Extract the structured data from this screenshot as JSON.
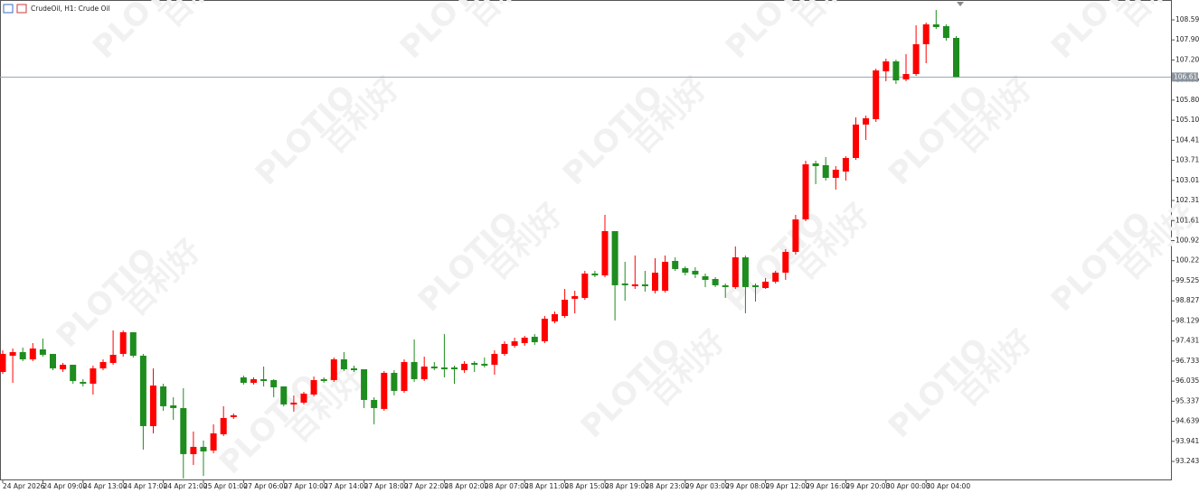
{
  "chart_data": {
    "type": "candlestick",
    "title": "CrudeOil, H1:  Crude Oil",
    "watermark": [
      "百利好",
      "PLOTIO"
    ],
    "categories": [
      "24 Apr 2026",
      null,
      null,
      null,
      "24 Apr 09:00",
      null,
      null,
      null,
      "24 Apr 13:00",
      null,
      null,
      null,
      "24 Apr 17:00",
      null,
      null,
      null,
      "24 Apr 21:00",
      null,
      null,
      null,
      "25 Apr 01:00",
      null,
      null,
      null,
      "27 Apr 06:00",
      null,
      null,
      null,
      "27 Apr 10:00",
      null,
      null,
      null,
      "27 Apr 14:00",
      null,
      null,
      null,
      "27 Apr 18:00",
      null,
      null,
      null,
      "27 Apr 22:00",
      null,
      null,
      null,
      "28 Apr 02:00",
      null,
      null,
      null,
      "28 Apr 07:00",
      null,
      null,
      null,
      "28 Apr 11:00",
      null,
      null,
      null,
      "28 Apr 15:00",
      null,
      null,
      null,
      "28 Apr 19:00",
      null,
      null,
      null,
      "28 Apr 23:00",
      null,
      null,
      null,
      "29 Apr 03:00",
      null,
      null,
      null,
      "29 Apr 08:00",
      null,
      null,
      null,
      "29 Apr 12:00",
      null,
      null,
      null,
      "29 Apr 16:00",
      null,
      null,
      null,
      "29 Apr 20:00",
      null,
      null,
      null,
      "30 Apr 00:00",
      null,
      null,
      null,
      "30 Apr 04:00",
      null,
      null,
      null
    ],
    "open": [
      96.353,
      96.918,
      97.044,
      96.793,
      97.138,
      96.981,
      96.447,
      96.604,
      96.008,
      95.945,
      96.479,
      96.667,
      96.981,
      97.735,
      96.918,
      94.469,
      95.851,
      95.191,
      95.097,
      93.496,
      93.747,
      93.621,
      94.187,
      94.783,
      96.165,
      95.976,
      96.102,
      96.071,
      95.851,
      95.223,
      95.286,
      95.568,
      96.102,
      96.071,
      96.793,
      96.479,
      96.447,
      95.38,
      95.066,
      96.322,
      95.694,
      96.699,
      96.102,
      96.542,
      96.51,
      96.51,
      96.416,
      96.667,
      96.636,
      96.604,
      96.981,
      97.264,
      97.358,
      97.578,
      97.421,
      98.112,
      98.3,
      98.897,
      98.928,
      99.776,
      99.713,
      101.252,
      99.43,
      99.336,
      99.399,
      99.179,
      99.179,
      100.215,
      99.964,
      99.87,
      99.682,
      99.587,
      99.368,
      99.305,
      100.341,
      99.368,
      99.273,
      99.493,
      99.807,
      100.529,
      101.66,
      103.607,
      103.544,
      103.104,
      103.324,
      103.795,
      104.957,
      105.145,
      106.809,
      107.155,
      106.527,
      106.715,
      107.751,
      108.442,
      108.379,
      107.971
    ],
    "high": [
      97.107,
      97.17,
      97.201,
      97.358,
      97.515,
      96.981,
      96.667,
      96.604,
      96.102,
      96.573,
      96.793,
      97.798,
      97.798,
      97.735,
      96.981,
      96.479,
      95.945,
      95.474,
      95.788,
      94.281,
      93.967,
      94.532,
      95.16,
      94.909,
      96.228,
      96.165,
      96.542,
      96.102,
      95.851,
      95.537,
      95.662,
      96.196,
      96.165,
      96.856,
      97.044,
      96.573,
      96.447,
      95.474,
      96.385,
      96.416,
      96.793,
      97.484,
      96.887,
      96.699,
      97.672,
      96.573,
      96.73,
      96.73,
      96.856,
      97.107,
      97.421,
      97.546,
      97.609,
      97.672,
      98.3,
      98.457,
      99.242,
      99.179,
      99.87,
      99.87,
      101.817,
      101.252,
      100.184,
      100.404,
      99.87,
      100.31,
      100.404,
      100.341,
      100.027,
      99.996,
      99.776,
      99.65,
      99.43,
      100.718,
      100.404,
      99.43,
      99.619,
      99.87,
      100.624,
      101.817,
      103.701,
      103.701,
      103.826,
      103.512,
      103.858,
      105.208,
      105.271,
      106.904,
      107.249,
      107.218,
      107.406,
      108.411,
      108.505,
      108.945,
      108.442,
      108.034
    ],
    "low": [
      96.29,
      95.976,
      96.73,
      96.73,
      96.887,
      96.416,
      96.353,
      95.945,
      95.851,
      95.568,
      96.416,
      96.604,
      96.887,
      96.856,
      93.653,
      94.218,
      95.003,
      94.689,
      92.648,
      93.119,
      92.742,
      93.527,
      94.124,
      94.72,
      95.914,
      95.914,
      95.851,
      95.474,
      95.16,
      94.972,
      95.223,
      95.505,
      95.976,
      96.008,
      96.385,
      96.353,
      95.097,
      94.532,
      95.003,
      95.537,
      95.631,
      96.008,
      96.039,
      96.416,
      96.165,
      95.945,
      96.322,
      96.353,
      96.51,
      96.259,
      96.918,
      97.201,
      97.264,
      97.295,
      97.358,
      98.049,
      98.237,
      98.394,
      98.865,
      99.65,
      99.65,
      98.143,
      98.834,
      99.242,
      99.148,
      99.085,
      99.116,
      99.87,
      99.713,
      99.619,
      99.305,
      99.305,
      98.928,
      99.242,
      98.394,
      98.802,
      99.242,
      99.43,
      99.556,
      100.435,
      101.597,
      102.884,
      103.01,
      102.696,
      103.01,
      103.732,
      104.423,
      105.051,
      106.464,
      106.37,
      106.464,
      106.652,
      107.092,
      108.285,
      107.877,
      106.61
    ],
    "close": [
      96.981,
      97.044,
      96.793,
      97.17,
      96.95,
      96.479,
      96.604,
      96.039,
      95.945,
      96.479,
      96.699,
      96.95,
      97.735,
      96.918,
      94.469,
      95.882,
      95.16,
      95.097,
      93.496,
      93.747,
      93.59,
      94.218,
      94.752,
      94.846,
      95.976,
      96.102,
      96.039,
      95.819,
      95.223,
      95.286,
      95.6,
      96.071,
      96.039,
      96.793,
      96.447,
      96.416,
      95.38,
      95.097,
      96.322,
      95.694,
      96.699,
      96.102,
      96.542,
      96.479,
      96.447,
      96.447,
      96.636,
      96.604,
      96.573,
      96.981,
      97.327,
      97.421,
      97.546,
      97.389,
      98.206,
      98.363,
      98.865,
      98.991,
      99.776,
      99.713,
      101.252,
      99.368,
      99.368,
      99.399,
      99.336,
      99.807,
      100.184,
      99.933,
      99.807,
      99.744,
      99.556,
      99.368,
      99.305,
      100.341,
      99.305,
      99.305,
      99.493,
      99.807,
      100.529,
      101.66,
      103.575,
      103.512,
      103.104,
      103.387,
      103.795,
      104.957,
      105.177,
      106.841,
      107.155,
      106.495,
      106.715,
      107.751,
      108.442,
      108.348,
      107.971,
      106.61
    ],
    "up_color": "#ff0000",
    "down_color": "#1e8c1e",
    "price_line": {
      "value": 106.61,
      "label": "106.610"
    },
    "ylim": [
      92.646,
      109.227
    ],
    "yticks": [
      108.599,
      107.901,
      107.203,
      106.505,
      105.807,
      105.109,
      104.411,
      103.713,
      103.015,
      102.317,
      101.619,
      100.921,
      100.223,
      99.525,
      98.827,
      98.129,
      97.431,
      96.733,
      96.035,
      95.337,
      94.639,
      93.941,
      93.243
    ]
  }
}
